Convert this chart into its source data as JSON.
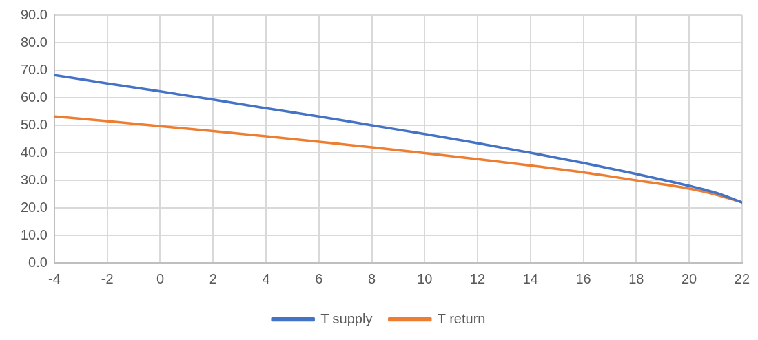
{
  "chart_data": {
    "type": "line",
    "x": [
      -4,
      -2,
      0,
      2,
      4,
      6,
      8,
      10,
      12,
      14,
      16,
      18,
      20,
      21,
      22
    ],
    "series": [
      {
        "name": "T supply",
        "color": "#4472c4",
        "values": [
          68.2,
          65.2,
          62.3,
          59.3,
          56.2,
          53.2,
          50.0,
          46.8,
          43.5,
          40.0,
          36.3,
          32.3,
          28.0,
          25.5,
          22.0
        ]
      },
      {
        "name": "T return",
        "color": "#ed7d31",
        "values": [
          53.2,
          51.5,
          49.7,
          47.9,
          46.0,
          44.0,
          42.0,
          39.9,
          37.7,
          35.4,
          32.9,
          30.0,
          27.0,
          24.8,
          22.0
        ]
      }
    ],
    "xlim": [
      -4,
      22
    ],
    "xticks": [
      -4,
      -2,
      0,
      2,
      4,
      6,
      8,
      10,
      12,
      14,
      16,
      18,
      20,
      22
    ],
    "ylim": [
      0,
      90
    ],
    "yticks": [
      {
        "value": 0,
        "label": "0.0"
      },
      {
        "value": 10,
        "label": "10.0"
      },
      {
        "value": 20,
        "label": "20.0"
      },
      {
        "value": 30,
        "label": "30.0"
      },
      {
        "value": 40,
        "label": "40.0"
      },
      {
        "value": 50,
        "label": "50.0"
      },
      {
        "value": 60,
        "label": "60.0"
      },
      {
        "value": 70,
        "label": "70.0"
      },
      {
        "value": 80,
        "label": "80.0"
      },
      {
        "value": 90,
        "label": "90.0"
      }
    ],
    "grid": true,
    "legend": "bottom",
    "marker": "none",
    "line_style": "solid"
  }
}
